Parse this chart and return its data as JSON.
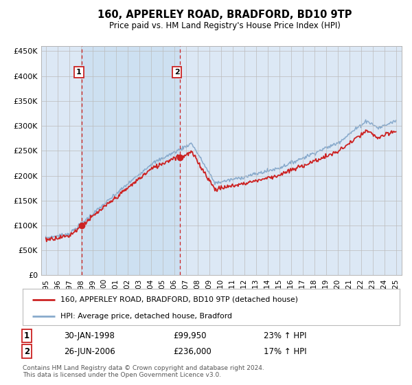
{
  "title": "160, APPERLEY ROAD, BRADFORD, BD10 9TP",
  "subtitle": "Price paid vs. HM Land Registry's House Price Index (HPI)",
  "background_color": "#ffffff",
  "plot_bg_color": "#dce8f5",
  "red_line_label": "160, APPERLEY ROAD, BRADFORD, BD10 9TP (detached house)",
  "blue_line_label": "HPI: Average price, detached house, Bradford",
  "transaction1_date": "30-JAN-1998",
  "transaction1_price": "£99,950",
  "transaction1_hpi": "23% ↑ HPI",
  "transaction2_date": "26-JUN-2006",
  "transaction2_price": "£236,000",
  "transaction2_hpi": "17% ↑ HPI",
  "footer": "Contains HM Land Registry data © Crown copyright and database right 2024.\nThis data is licensed under the Open Government Licence v3.0.",
  "ylim": [
    0,
    460000
  ],
  "yticks": [
    0,
    50000,
    100000,
    150000,
    200000,
    250000,
    300000,
    350000,
    400000,
    450000
  ],
  "ytick_labels": [
    "£0",
    "£50K",
    "£100K",
    "£150K",
    "£200K",
    "£250K",
    "£300K",
    "£350K",
    "£400K",
    "£450K"
  ],
  "xtick_years": [
    1995,
    1996,
    1997,
    1998,
    1999,
    2000,
    2001,
    2002,
    2003,
    2004,
    2005,
    2006,
    2007,
    2008,
    2009,
    2010,
    2011,
    2012,
    2013,
    2014,
    2015,
    2016,
    2017,
    2018,
    2019,
    2020,
    2021,
    2022,
    2023,
    2024,
    2025
  ],
  "transaction1_x": 1998.08,
  "transaction1_y": 99950,
  "transaction2_x": 2006.49,
  "transaction2_y": 236000,
  "vline1_x": 1998.08,
  "vline2_x": 2006.49,
  "red_color": "#cc2222",
  "blue_color": "#88aacc",
  "shade_color": "#c8ddf0"
}
